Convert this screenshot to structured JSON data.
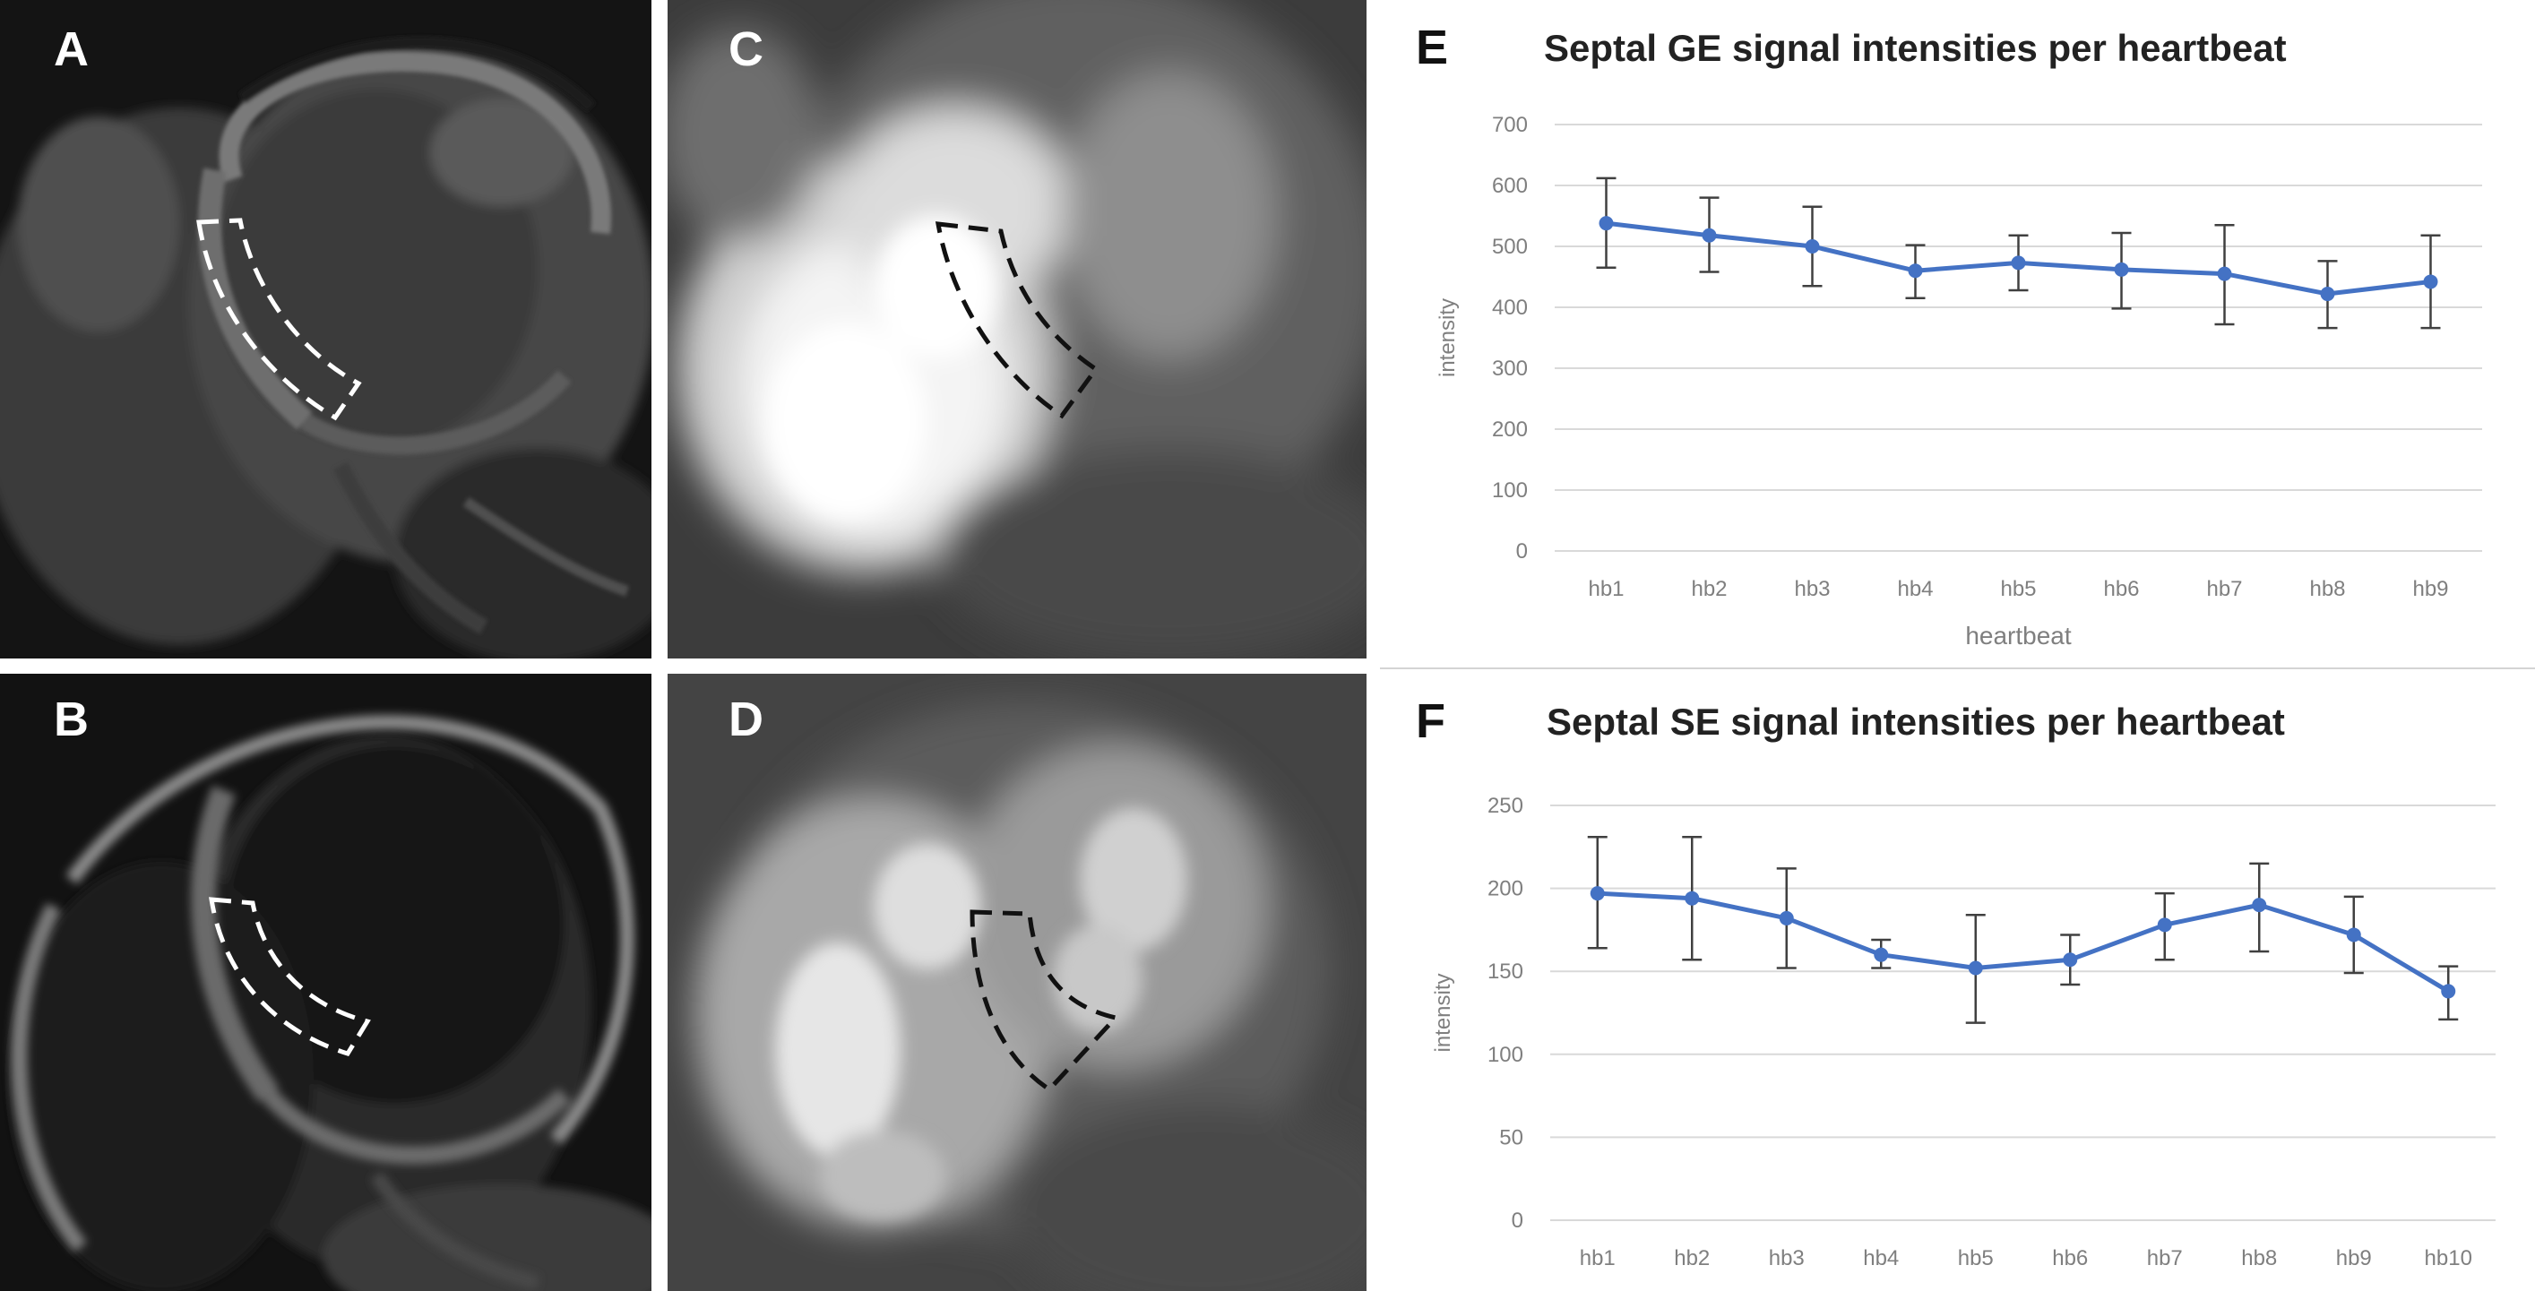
{
  "panels": {
    "a": {
      "letter": "A"
    },
    "b": {
      "letter": "B"
    },
    "c": {
      "letter": "C"
    },
    "d": {
      "letter": "D"
    },
    "e": {
      "letter": "E"
    },
    "f": {
      "letter": "F"
    }
  },
  "colors": {
    "series": "#4472c4",
    "errorbar": "#404040",
    "grid": "#d9d9d9",
    "tick": "#7f7f7f",
    "title": "#222222",
    "roi_bright": "#ffffff",
    "roi_dark": "#111111"
  },
  "chart_data": [
    {
      "type": "line",
      "title": "Septal GE signal intensities per heartbeat",
      "xlabel": "heartbeat",
      "ylabel": "intensity",
      "categories": [
        "hb1",
        "hb2",
        "hb3",
        "hb4",
        "hb5",
        "hb6",
        "hb7",
        "hb8",
        "hb9"
      ],
      "ylim": [
        0,
        700
      ],
      "yticks": [
        "0",
        "100",
        "200",
        "300",
        "400",
        "500",
        "600",
        "700"
      ],
      "grid": true,
      "series": [
        {
          "values": [
            538,
            518,
            500,
            460,
            473,
            462,
            455,
            422,
            442
          ],
          "err_high": [
            612,
            580,
            565,
            502,
            518,
            522,
            535,
            476,
            518
          ],
          "err_low": [
            465,
            458,
            435,
            415,
            428,
            398,
            372,
            366,
            366
          ]
        }
      ]
    },
    {
      "type": "line",
      "title": "Septal SE signal intensities per heartbeat",
      "xlabel": "",
      "ylabel": "intensity",
      "categories": [
        "hb1",
        "hb2",
        "hb3",
        "hb4",
        "hb5",
        "hb6",
        "hb7",
        "hb8",
        "hb9",
        "hb10"
      ],
      "ylim": [
        0,
        250
      ],
      "yticks": [
        "0",
        "50",
        "100",
        "150",
        "200",
        "250"
      ],
      "grid": true,
      "series": [
        {
          "values": [
            197,
            194,
            182,
            160,
            152,
            157,
            178,
            190,
            172,
            138
          ],
          "err_high": [
            231,
            231,
            212,
            169,
            184,
            172,
            197,
            215,
            195,
            153
          ],
          "err_low": [
            164,
            157,
            152,
            152,
            119,
            142,
            157,
            162,
            149,
            121
          ]
        }
      ]
    }
  ]
}
